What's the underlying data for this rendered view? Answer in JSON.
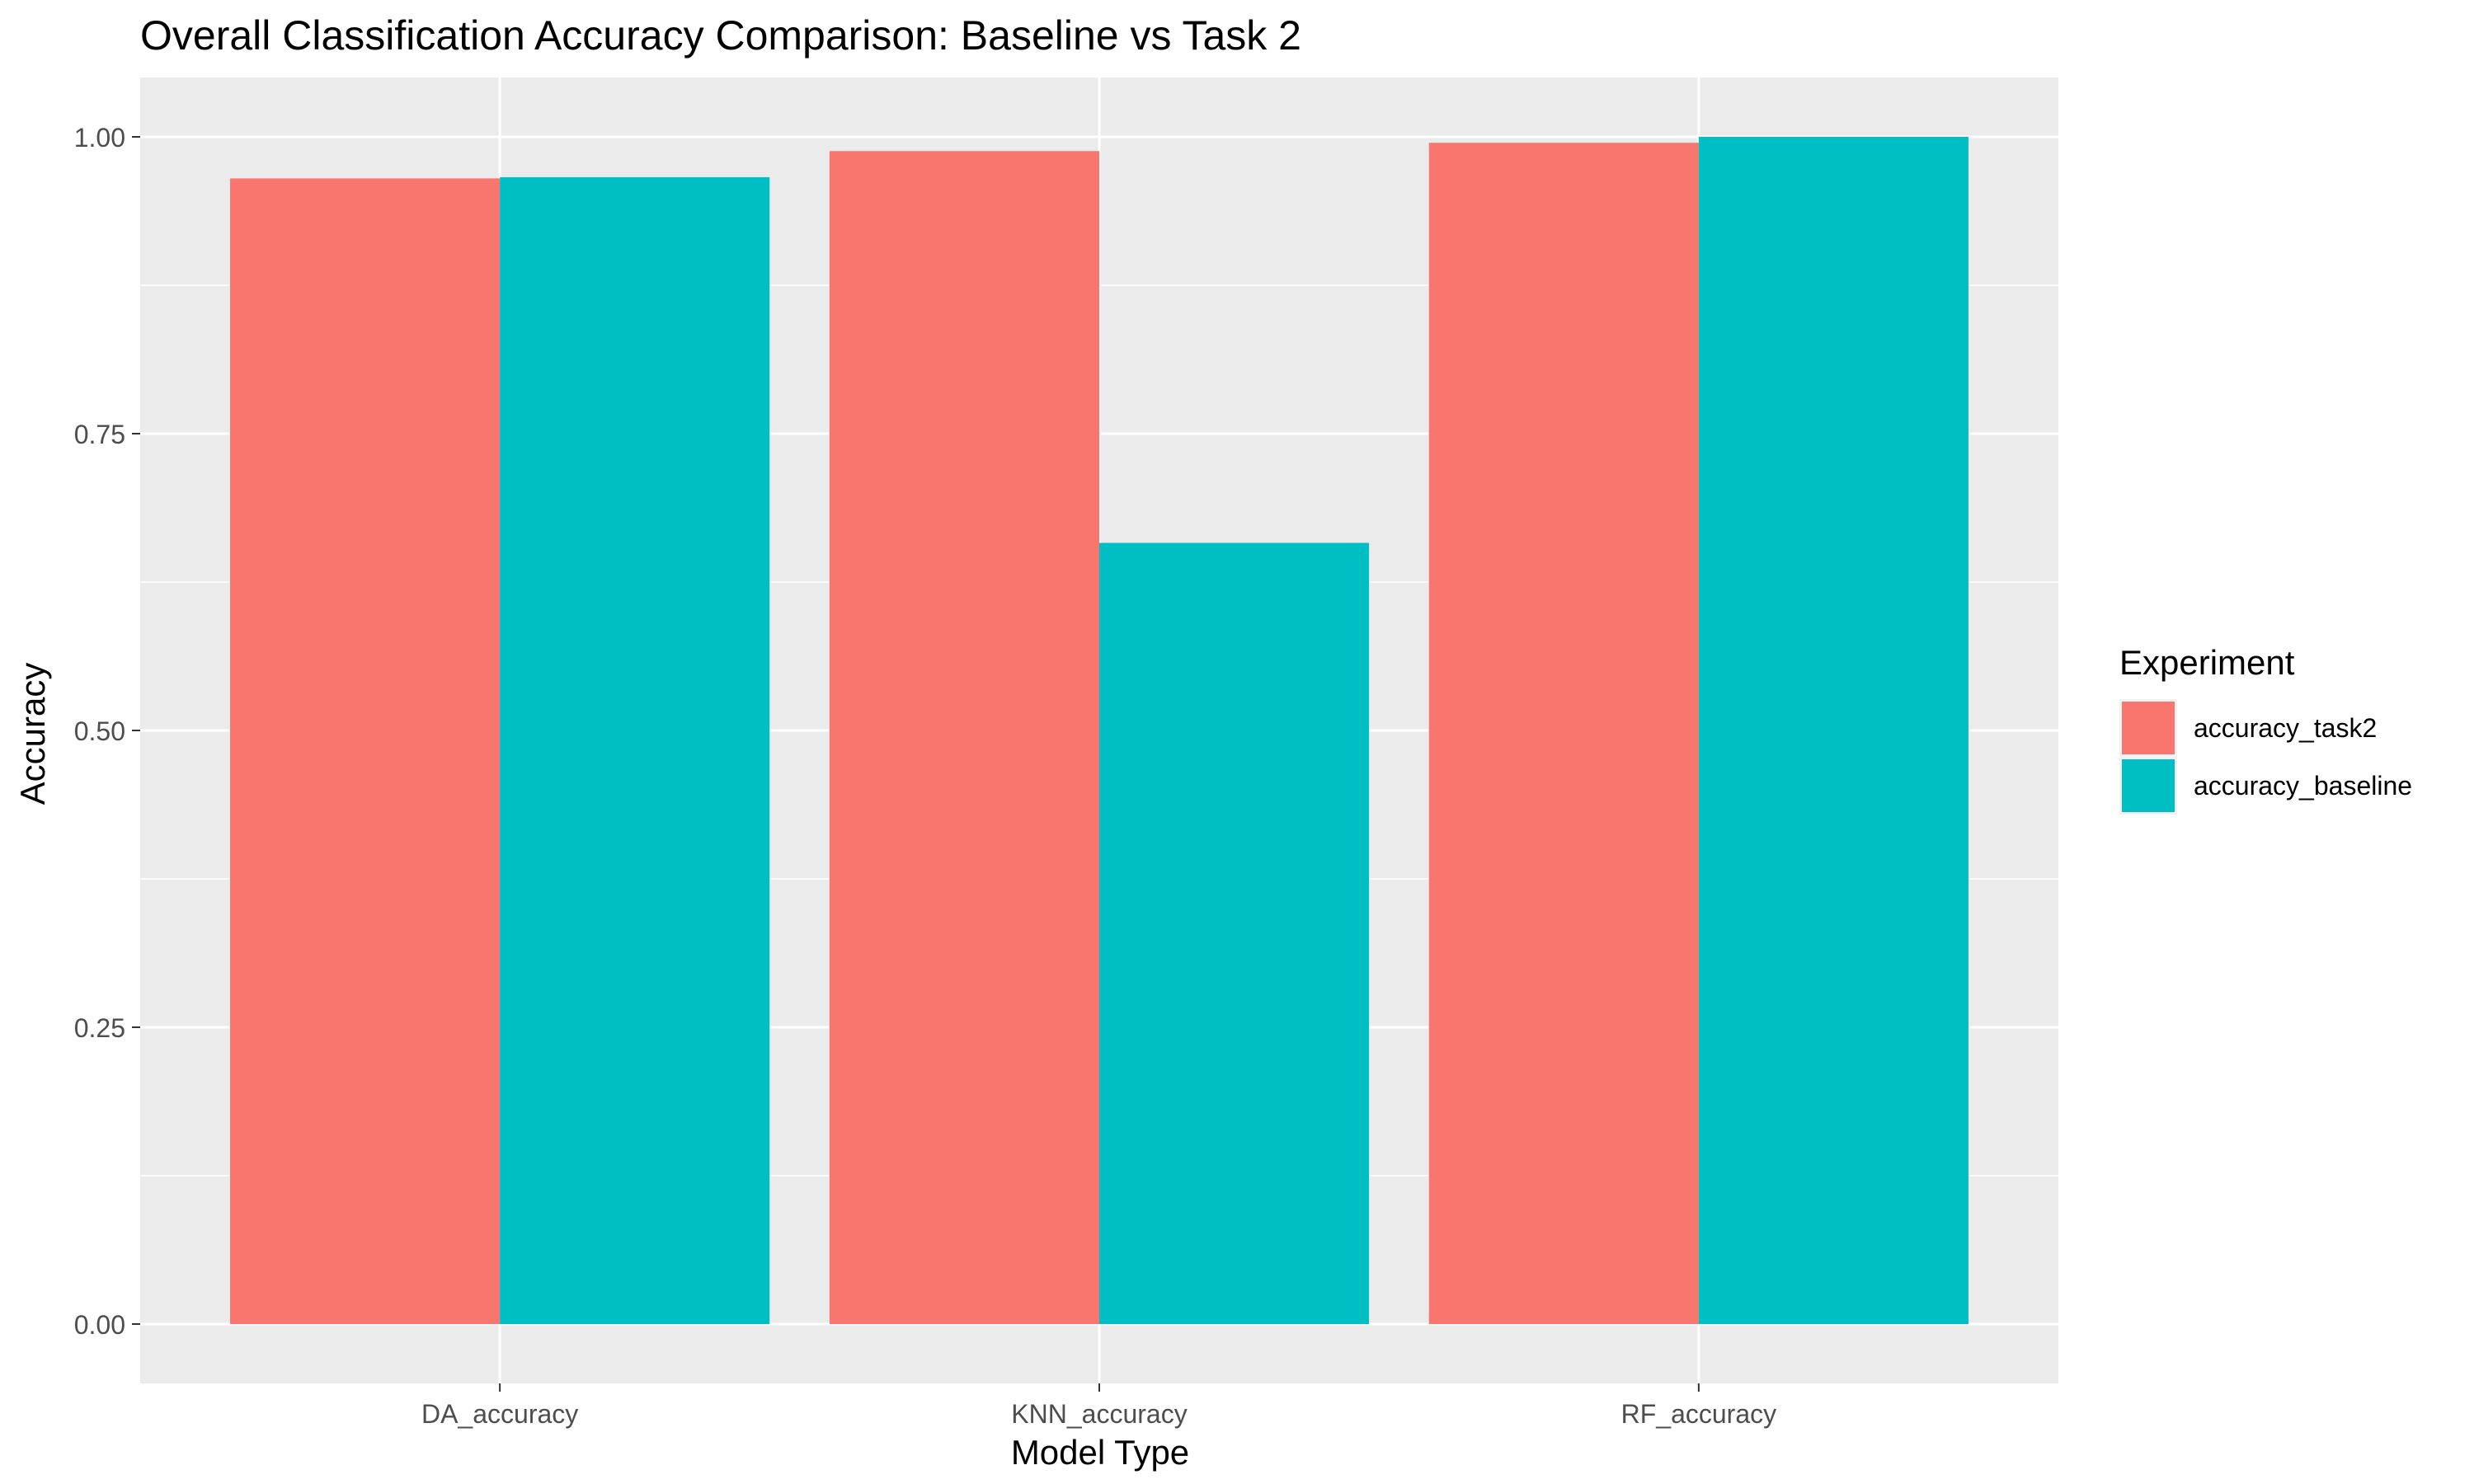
{
  "chart_data": {
    "type": "bar",
    "title": "Overall Classification Accuracy Comparison: Baseline vs Task 2",
    "xlabel": "Model Type",
    "ylabel": "Accuracy",
    "categories": [
      "DA_accuracy",
      "KNN_accuracy",
      "RF_accuracy"
    ],
    "series": [
      {
        "name": "accuracy_task2",
        "color": "#F8766D",
        "values": [
          0.965,
          0.988,
          0.995
        ]
      },
      {
        "name": "accuracy_baseline",
        "color": "#00BFC4",
        "values": [
          0.966,
          0.658,
          1.0
        ]
      }
    ],
    "ylim": [
      -0.05,
      1.05
    ],
    "yticks": [
      0.0,
      0.25,
      0.5,
      0.75,
      1.0
    ],
    "ytick_labels": [
      "0.00",
      "0.25",
      "0.50",
      "0.75",
      "1.00"
    ],
    "legend": {
      "title": "Experiment",
      "position": "right"
    },
    "grid": true,
    "panel_background": "#EBEBEB",
    "grid_color": "#FFFFFF"
  }
}
